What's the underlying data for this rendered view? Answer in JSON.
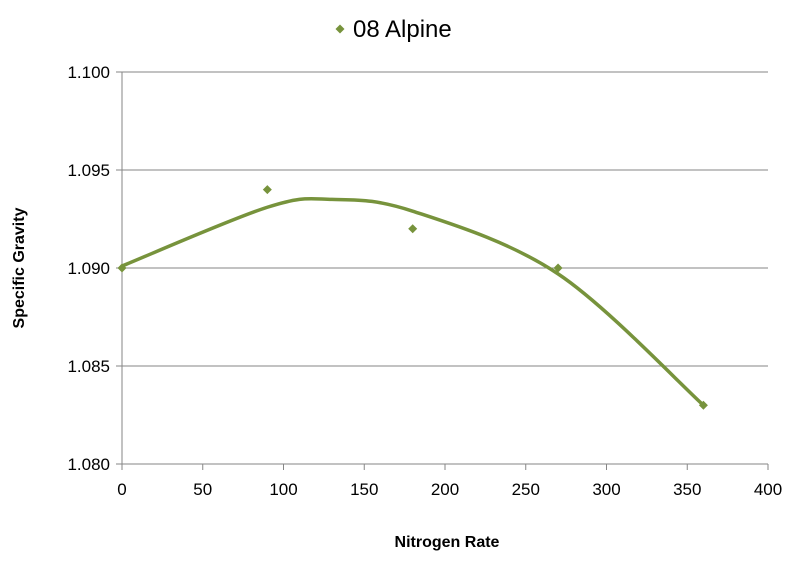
{
  "chart_data": {
    "type": "scatter",
    "title": "",
    "xlabel": "Nitrogen Rate",
    "ylabel": "Specific Gravity",
    "xlim": [
      0,
      400
    ],
    "ylim": [
      1.08,
      1.1
    ],
    "x_ticks": [
      "0",
      "50",
      "100",
      "150",
      "200",
      "250",
      "300",
      "350",
      "400"
    ],
    "y_ticks": [
      "1.080",
      "1.085",
      "1.090",
      "1.095",
      "1.100"
    ],
    "grid": "horizontal",
    "legend": "top-center",
    "series": [
      {
        "name": "08 Alpine",
        "color": "#77933C",
        "marker": "diamond",
        "points": [
          {
            "x": 0,
            "y": 1.09
          },
          {
            "x": 90,
            "y": 1.094
          },
          {
            "x": 180,
            "y": 1.092
          },
          {
            "x": 270,
            "y": 1.09
          },
          {
            "x": 360,
            "y": 1.083
          }
        ],
        "trendline": {
          "type": "polynomial-order-2",
          "x_range": [
            0,
            360
          ],
          "samples": [
            {
              "x": 0,
              "y": 1.0901
            },
            {
              "x": 90,
              "y": 1.0931
            },
            {
              "x": 130,
              "y": 1.0935
            },
            {
              "x": 180,
              "y": 1.0929
            },
            {
              "x": 270,
              "y": 1.0897
            },
            {
              "x": 360,
              "y": 1.083
            }
          ]
        }
      }
    ]
  }
}
